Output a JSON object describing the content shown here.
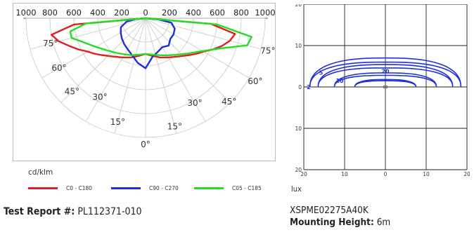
{
  "chart_data": [
    {
      "type": "polar",
      "unit_label": "cd/klm",
      "angle_labels": [
        "75°",
        "60°",
        "45°",
        "30°",
        "15°",
        "0°",
        "15°",
        "30°",
        "45°",
        "60°",
        "75°"
      ],
      "intensity_ticks": [
        "1000",
        "800",
        "600",
        "400",
        "200",
        "0",
        "200",
        "400",
        "600",
        "800",
        "1000"
      ],
      "rlim": [
        0,
        1000
      ],
      "series": [
        {
          "name": "C0 - C180",
          "color": "#e02020",
          "angles": [
            0,
            10,
            20,
            30,
            40,
            50,
            55,
            60,
            65,
            70,
            75,
            80,
            85,
            90
          ],
          "left": [
            300,
            320,
            350,
            380,
            420,
            480,
            520,
            560,
            620,
            680,
            750,
            800,
            600,
            0
          ],
          "right": [
            300,
            320,
            350,
            380,
            420,
            480,
            520,
            560,
            620,
            680,
            730,
            760,
            550,
            0
          ]
        },
        {
          "name": "C90 - C270",
          "color": "#1a2fd6",
          "angles": [
            0,
            10,
            20,
            30,
            40,
            50,
            60,
            70,
            80,
            85,
            90
          ],
          "left": [
            420,
            380,
            330,
            300,
            280,
            260,
            240,
            220,
            160,
            80,
            0
          ],
          "right": [
            420,
            330,
            300,
            280,
            300,
            270,
            270,
            260,
            220,
            100,
            0
          ]
        },
        {
          "name": "C05 - C185",
          "color": "#22dd22",
          "angles": [
            0,
            10,
            20,
            30,
            40,
            50,
            60,
            65,
            70,
            75,
            80,
            85,
            90
          ],
          "left": [
            300,
            310,
            330,
            350,
            380,
            420,
            480,
            520,
            570,
            640,
            640,
            500,
            0
          ],
          "right": [
            300,
            310,
            330,
            360,
            400,
            460,
            550,
            620,
            720,
            880,
            900,
            600,
            0
          ]
        }
      ]
    },
    {
      "type": "contour",
      "unit_label": "lux",
      "x_ticks": [
        "20",
        "10",
        "0",
        "10",
        "20"
      ],
      "y_ticks": [
        "20",
        "10",
        "0",
        "10",
        "20"
      ],
      "xlim": [
        -20,
        20
      ],
      "ylim": [
        -20,
        20
      ],
      "grid": true,
      "contours": [
        {
          "level": "2",
          "color": "#2030d8"
        },
        {
          "level": "5",
          "color": "#2030d8"
        },
        {
          "level": "10",
          "color": "#2030d8"
        },
        {
          "level": "20",
          "color": "#2030d8"
        }
      ]
    }
  ],
  "footer": {
    "report_label": "Test Report #:",
    "report_value": "PL112371-010",
    "product_code": "XSPME02275A40K",
    "mounting_label": "Mounting Height:",
    "mounting_value": "6m"
  }
}
